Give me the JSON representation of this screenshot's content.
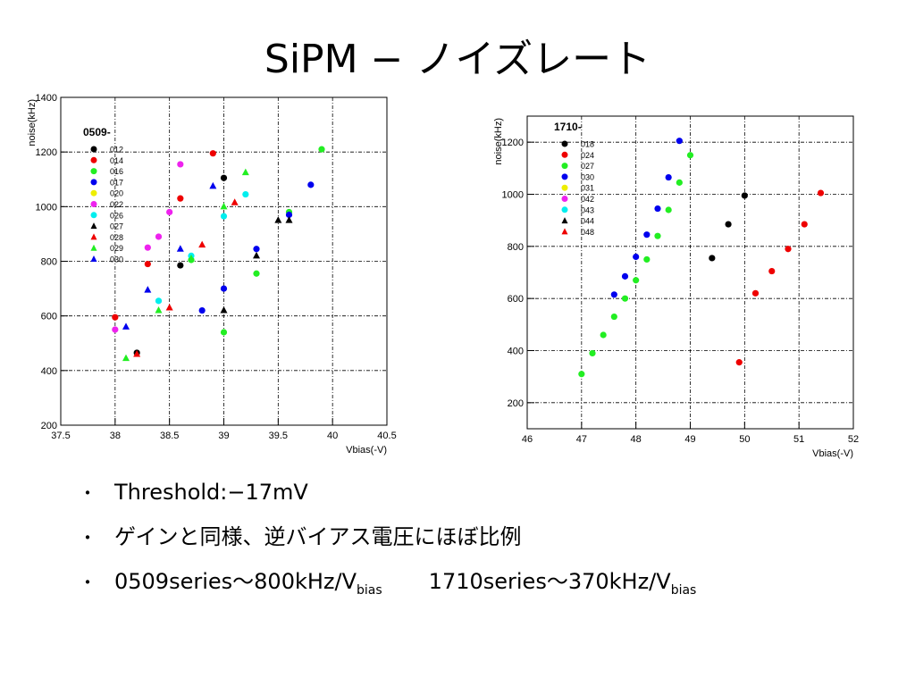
{
  "title": "SiPM − ノイズレート",
  "bullets": {
    "marker": "・",
    "b1": "Threshold:−17mV",
    "b2": "ゲインと同様、逆バイアス電圧にほぼ比例",
    "b3_part1": "0509series〜800kHz/V",
    "b3_sub1": "bias",
    "b3_part2": "1710series〜370kHz/V",
    "b3_sub2": "bias"
  },
  "chart_data": [
    {
      "type": "scatter",
      "title": "0509-",
      "xlabel": "Vbias(-V)",
      "ylabel": "noise(kHz)",
      "xlim": [
        37.5,
        40.5
      ],
      "ylim": [
        200,
        1400
      ],
      "xticks": [
        37.5,
        38,
        38.5,
        39,
        39.5,
        40,
        40.5
      ],
      "yticks": [
        200,
        400,
        600,
        800,
        1000,
        1200,
        1400
      ],
      "grid": true,
      "legend_position": "top-left",
      "series": [
        {
          "name": "012",
          "color": "#000000",
          "marker": "circle",
          "points": [
            [
              38.2,
              465
            ],
            [
              38.6,
              785
            ],
            [
              39.0,
              1105
            ]
          ]
        },
        {
          "name": "014",
          "color": "#ee0000",
          "marker": "circle",
          "points": [
            [
              38.0,
              595
            ],
            [
              38.3,
              790
            ],
            [
              38.6,
              1030
            ],
            [
              38.9,
              1195
            ]
          ]
        },
        {
          "name": "016",
          "color": "#22ee22",
          "marker": "circle",
          "points": [
            [
              38.7,
              805
            ],
            [
              39.0,
              540
            ],
            [
              39.3,
              755
            ],
            [
              39.6,
              980
            ],
            [
              39.9,
              1210
            ]
          ]
        },
        {
          "name": "017",
          "color": "#0000ee",
          "marker": "circle",
          "points": [
            [
              38.8,
              620
            ],
            [
              39.0,
              700
            ],
            [
              39.3,
              845
            ],
            [
              39.6,
              970
            ],
            [
              39.8,
              1080
            ]
          ]
        },
        {
          "name": "020",
          "color": "#eeee00",
          "marker": "circle",
          "points": []
        },
        {
          "name": "022",
          "color": "#ee22ee",
          "marker": "circle",
          "points": [
            [
              38.0,
              550
            ],
            [
              38.3,
              850
            ],
            [
              38.4,
              890
            ],
            [
              38.5,
              980
            ],
            [
              38.6,
              1155
            ]
          ]
        },
        {
          "name": "026",
          "color": "#00eeee",
          "marker": "circle",
          "points": [
            [
              38.4,
              655
            ],
            [
              38.7,
              820
            ],
            [
              39.0,
              965
            ],
            [
              39.2,
              1045
            ]
          ]
        },
        {
          "name": "027",
          "color": "#000000",
          "marker": "triangle",
          "points": [
            [
              39.0,
              620
            ],
            [
              39.3,
              820
            ],
            [
              39.5,
              950
            ],
            [
              39.6,
              950
            ]
          ]
        },
        {
          "name": "028",
          "color": "#ee0000",
          "marker": "triangle",
          "points": [
            [
              38.2,
              460
            ],
            [
              38.5,
              630
            ],
            [
              38.8,
              860
            ],
            [
              39.1,
              1015
            ]
          ]
        },
        {
          "name": "029",
          "color": "#22ee22",
          "marker": "triangle",
          "points": [
            [
              38.1,
              445
            ],
            [
              38.4,
              620
            ],
            [
              38.7,
              810
            ],
            [
              39.0,
              1000
            ],
            [
              39.2,
              1125
            ]
          ]
        },
        {
          "name": "030",
          "color": "#0000ee",
          "marker": "triangle",
          "points": [
            [
              38.1,
              560
            ],
            [
              38.3,
              695
            ],
            [
              38.6,
              845
            ],
            [
              38.9,
              1075
            ]
          ]
        }
      ]
    },
    {
      "type": "scatter",
      "title": "1710-",
      "xlabel": "Vbias(-V)",
      "ylabel": "noise(kHz)",
      "xlim": [
        46,
        52
      ],
      "ylim": [
        100,
        1300
      ],
      "xticks": [
        46,
        47,
        48,
        49,
        50,
        51,
        52
      ],
      "yticks": [
        200,
        400,
        600,
        800,
        1000,
        1200
      ],
      "grid": true,
      "legend_position": "top-left",
      "series": [
        {
          "name": "018",
          "color": "#000000",
          "marker": "circle",
          "points": [
            [
              49.4,
              755
            ],
            [
              49.7,
              885
            ],
            [
              50.0,
              995
            ]
          ]
        },
        {
          "name": "024",
          "color": "#ee0000",
          "marker": "circle",
          "points": [
            [
              49.9,
              355
            ],
            [
              50.2,
              620
            ],
            [
              50.5,
              705
            ],
            [
              50.8,
              790
            ],
            [
              51.1,
              885
            ],
            [
              51.4,
              1005
            ]
          ]
        },
        {
          "name": "027",
          "color": "#22ee22",
          "marker": "circle",
          "points": [
            [
              47.0,
              310
            ],
            [
              47.2,
              390
            ],
            [
              47.4,
              460
            ],
            [
              47.6,
              530
            ],
            [
              47.8,
              600
            ],
            [
              48.0,
              670
            ],
            [
              48.2,
              750
            ],
            [
              48.4,
              840
            ],
            [
              48.6,
              940
            ],
            [
              48.8,
              1045
            ],
            [
              49.0,
              1150
            ]
          ]
        },
        {
          "name": "030",
          "color": "#0000ee",
          "marker": "circle",
          "points": [
            [
              47.6,
              615
            ],
            [
              47.8,
              685
            ],
            [
              48.0,
              760
            ],
            [
              48.2,
              845
            ],
            [
              48.4,
              945
            ],
            [
              48.6,
              1065
            ],
            [
              48.8,
              1205
            ]
          ]
        },
        {
          "name": "031",
          "color": "#eeee00",
          "marker": "circle",
          "points": []
        },
        {
          "name": "042",
          "color": "#ee22ee",
          "marker": "circle",
          "points": []
        },
        {
          "name": "043",
          "color": "#00eeee",
          "marker": "circle",
          "points": []
        },
        {
          "name": "044",
          "color": "#000000",
          "marker": "triangle",
          "points": []
        },
        {
          "name": "048",
          "color": "#ee0000",
          "marker": "triangle",
          "points": []
        }
      ]
    }
  ]
}
